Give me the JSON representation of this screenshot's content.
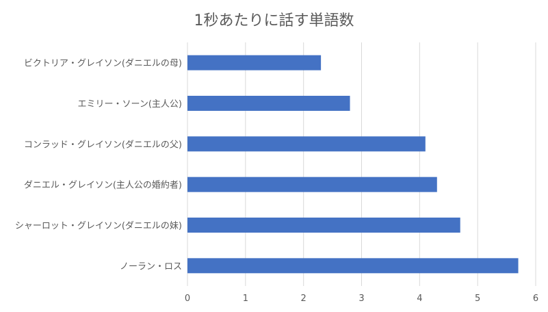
{
  "chart_data": {
    "type": "bar",
    "orientation": "horizontal",
    "title": "1秒あたりに話す単語数",
    "xlabel": "",
    "ylabel": "",
    "categories": [
      "ビクトリア・グレイソン(ダニエルの母)",
      "エミリー・ソーン(主人公)",
      "コンラッド・グレイソン(ダニエルの父)",
      "ダニエル・グレイソン(主人公の婚約者)",
      "シャーロット・グレイソン(ダニエルの妹)",
      "ノーラン・ロス"
    ],
    "values": [
      2.3,
      2.8,
      4.1,
      4.3,
      4.7,
      5.7
    ],
    "xlim": [
      0,
      6
    ],
    "xticks": [
      "0",
      "1",
      "2",
      "3",
      "4",
      "5",
      "6"
    ],
    "grid": "vertical",
    "legend": "none",
    "colors": {
      "bar": "#4472C4",
      "grid": "#D9D9D9",
      "text": "#595959"
    }
  }
}
